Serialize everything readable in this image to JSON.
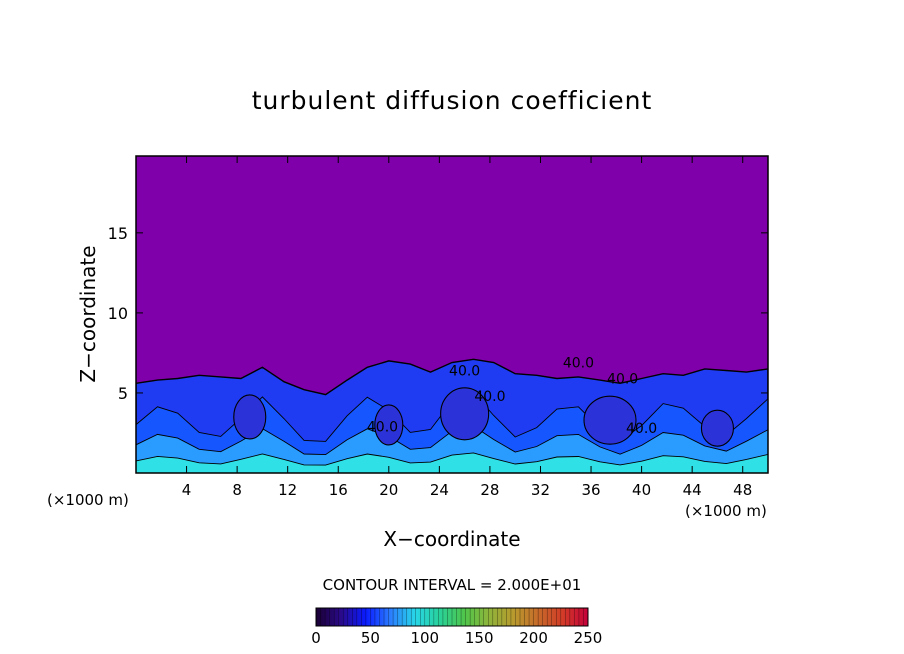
{
  "chart_data": {
    "type": "heatmap",
    "title": "turbulent diffusion coefficient",
    "xlabel": "X−coordinate",
    "ylabel": "Z−coordinate",
    "x_unit": "(×1000 m)",
    "y_unit": "(×1000 m)",
    "xlim": [
      0,
      50
    ],
    "ylim": [
      0,
      19.8
    ],
    "xticks": [
      4,
      8,
      12,
      16,
      20,
      24,
      28,
      32,
      36,
      40,
      44,
      48
    ],
    "yticks": [
      5,
      10,
      15
    ],
    "colorbar": {
      "ticks": [
        0,
        50,
        100,
        150,
        200,
        250
      ],
      "range": [
        0,
        250
      ],
      "colors": [
        "#1a0033",
        "#2a0a88",
        "#0a1bff",
        "#2b7cff",
        "#27d6e8",
        "#29d29a",
        "#4fc54a",
        "#8fb43a",
        "#b89a2e",
        "#c76a2a",
        "#d23a28",
        "#c4003a"
      ]
    },
    "contour_interval": "CONTOUR INTERVAL = 2.000E+01",
    "contour_labels": [
      "40.0",
      "40.0",
      "40.0",
      "40.0",
      "40.0",
      "40.0"
    ],
    "background_value": 0,
    "turbulent_layer_top_z": [
      5.6,
      5.8,
      5.9,
      6.1,
      6.0,
      5.9,
      6.6,
      5.7,
      5.2,
      4.9,
      5.8,
      6.6,
      7.0,
      6.8,
      6.3,
      6.9,
      7.1,
      6.9,
      6.2,
      6.1,
      5.9,
      6.0,
      5.8,
      5.6,
      5.9,
      6.2,
      6.1,
      6.5,
      6.4,
      6.3,
      6.5
    ],
    "turbulent_layer_x": [
      0,
      1.7,
      3.3,
      5,
      6.7,
      8.3,
      10,
      11.7,
      13.3,
      15,
      16.7,
      18.3,
      20,
      21.7,
      23.3,
      25,
      26.7,
      28.3,
      30,
      31.7,
      33.3,
      35,
      36.7,
      38.3,
      40,
      41.7,
      43.3,
      45,
      46.7,
      48.3,
      50
    ]
  }
}
